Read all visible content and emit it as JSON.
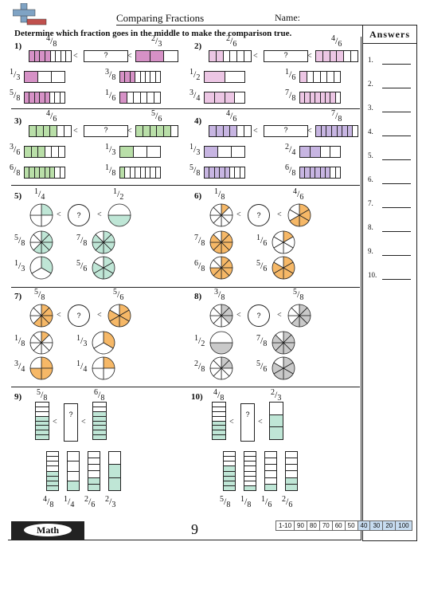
{
  "header": {
    "title": "Comparing Fractions",
    "name_label": "Name:"
  },
  "instructions": "Determine which fraction goes in the middle to make the comparison true.",
  "answers": {
    "title": "Answers",
    "labels": [
      "1.",
      "2.",
      "3.",
      "4.",
      "5.",
      "6.",
      "7.",
      "8.",
      "9.",
      "10."
    ]
  },
  "colors": {
    "pink": "#d691c6",
    "pink_light": "#ecc6e4",
    "green": "#b9dfa8",
    "lavender": "#c7b5e2",
    "teal": "#bfe6d6",
    "orange": "#f6b867",
    "gray": "#c9c9c9"
  },
  "symbols": {
    "lt": "<",
    "q": "?"
  },
  "problems": [
    {
      "label": "1)",
      "kind": "bar",
      "color": "pink",
      "left": {
        "n": "4",
        "d": "8",
        "filled": 4,
        "parts": 8
      },
      "right": {
        "n": "2",
        "d": "3",
        "filled": 2,
        "parts": 3
      },
      "options": [
        {
          "n": "1",
          "d": "3",
          "filled": 1,
          "parts": 3
        },
        {
          "n": "3",
          "d": "8",
          "filled": 3,
          "parts": 8
        },
        {
          "n": "5",
          "d": "8",
          "filled": 5,
          "parts": 8
        },
        {
          "n": "1",
          "d": "6",
          "filled": 1,
          "parts": 6
        }
      ]
    },
    {
      "label": "2)",
      "kind": "bar",
      "color": "pink_light",
      "left": {
        "n": "2",
        "d": "6",
        "filled": 2,
        "parts": 6
      },
      "right": {
        "n": "4",
        "d": "6",
        "filled": 4,
        "parts": 6
      },
      "options": [
        {
          "n": "1",
          "d": "2",
          "filled": 1,
          "parts": 2
        },
        {
          "n": "1",
          "d": "6",
          "filled": 1,
          "parts": 6
        },
        {
          "n": "3",
          "d": "4",
          "filled": 3,
          "parts": 4
        },
        {
          "n": "7",
          "d": "8",
          "filled": 7,
          "parts": 8
        }
      ]
    },
    {
      "label": "3)",
      "kind": "bar",
      "color": "green",
      "left": {
        "n": "4",
        "d": "6",
        "filled": 4,
        "parts": 6
      },
      "right": {
        "n": "5",
        "d": "6",
        "filled": 5,
        "parts": 6
      },
      "options": [
        {
          "n": "3",
          "d": "6",
          "filled": 3,
          "parts": 6
        },
        {
          "n": "1",
          "d": "3",
          "filled": 1,
          "parts": 3
        },
        {
          "n": "6",
          "d": "8",
          "filled": 6,
          "parts": 8
        },
        {
          "n": "1",
          "d": "8",
          "filled": 1,
          "parts": 8
        }
      ]
    },
    {
      "label": "4)",
      "kind": "bar",
      "color": "lavender",
      "left": {
        "n": "4",
        "d": "6",
        "filled": 4,
        "parts": 6
      },
      "right": {
        "n": "7",
        "d": "8",
        "filled": 7,
        "parts": 8
      },
      "options": [
        {
          "n": "1",
          "d": "3",
          "filled": 1,
          "parts": 3
        },
        {
          "n": "2",
          "d": "4",
          "filled": 2,
          "parts": 4
        },
        {
          "n": "5",
          "d": "8",
          "filled": 5,
          "parts": 8
        },
        {
          "n": "6",
          "d": "8",
          "filled": 6,
          "parts": 8
        }
      ]
    },
    {
      "label": "5)",
      "kind": "pie",
      "color": "teal",
      "left": {
        "n": "1",
        "d": "4",
        "filled": 1,
        "parts": 4
      },
      "right": {
        "n": "1",
        "d": "2",
        "filled": 1,
        "parts": 2
      },
      "options": [
        {
          "n": "5",
          "d": "8",
          "filled": 5,
          "parts": 8
        },
        {
          "n": "7",
          "d": "8",
          "filled": 7,
          "parts": 8
        },
        {
          "n": "1",
          "d": "3",
          "filled": 1,
          "parts": 3
        },
        {
          "n": "5",
          "d": "6",
          "filled": 5,
          "parts": 6
        }
      ]
    },
    {
      "label": "6)",
      "kind": "pie",
      "color": "orange",
      "left": {
        "n": "1",
        "d": "8",
        "filled": 1,
        "parts": 8
      },
      "right": {
        "n": "4",
        "d": "6",
        "filled": 4,
        "parts": 6
      },
      "options": [
        {
          "n": "7",
          "d": "8",
          "filled": 7,
          "parts": 8
        },
        {
          "n": "1",
          "d": "6",
          "filled": 1,
          "parts": 6
        },
        {
          "n": "6",
          "d": "8",
          "filled": 6,
          "parts": 8
        },
        {
          "n": "5",
          "d": "6",
          "filled": 5,
          "parts": 6
        }
      ]
    },
    {
      "label": "7)",
      "kind": "pie",
      "color": "orange",
      "left": {
        "n": "5",
        "d": "8",
        "filled": 5,
        "parts": 8
      },
      "right": {
        "n": "5",
        "d": "6",
        "filled": 5,
        "parts": 6
      },
      "options": [
        {
          "n": "1",
          "d": "8",
          "filled": 1,
          "parts": 8
        },
        {
          "n": "1",
          "d": "3",
          "filled": 1,
          "parts": 3
        },
        {
          "n": "3",
          "d": "4",
          "filled": 3,
          "parts": 4
        },
        {
          "n": "1",
          "d": "4",
          "filled": 1,
          "parts": 4
        }
      ]
    },
    {
      "label": "8)",
      "kind": "pie",
      "color": "gray",
      "left": {
        "n": "3",
        "d": "8",
        "filled": 3,
        "parts": 8
      },
      "right": {
        "n": "5",
        "d": "8",
        "filled": 5,
        "parts": 8
      },
      "options": [
        {
          "n": "1",
          "d": "2",
          "filled": 1,
          "parts": 2
        },
        {
          "n": "7",
          "d": "8",
          "filled": 7,
          "parts": 8
        },
        {
          "n": "2",
          "d": "8",
          "filled": 2,
          "parts": 8
        },
        {
          "n": "5",
          "d": "6",
          "filled": 5,
          "parts": 6
        }
      ]
    },
    {
      "label": "9)",
      "kind": "vbar",
      "color": "teal",
      "left": {
        "n": "5",
        "d": "8",
        "filled": 5,
        "parts": 8
      },
      "right": {
        "n": "6",
        "d": "8",
        "filled": 6,
        "parts": 8
      },
      "options": [
        {
          "n": "4",
          "d": "8",
          "filled": 4,
          "parts": 8
        },
        {
          "n": "1",
          "d": "4",
          "filled": 1,
          "parts": 4
        },
        {
          "n": "2",
          "d": "6",
          "filled": 2,
          "parts": 6
        },
        {
          "n": "2",
          "d": "3",
          "filled": 2,
          "parts": 3
        }
      ]
    },
    {
      "label": "10)",
      "kind": "vbar",
      "color": "teal",
      "left": {
        "n": "4",
        "d": "8",
        "filled": 4,
        "parts": 8
      },
      "right": {
        "n": "2",
        "d": "3",
        "filled": 2,
        "parts": 3
      },
      "options": [
        {
          "n": "5",
          "d": "8",
          "filled": 5,
          "parts": 8
        },
        {
          "n": "1",
          "d": "8",
          "filled": 1,
          "parts": 8
        },
        {
          "n": "1",
          "d": "6",
          "filled": 1,
          "parts": 6
        },
        {
          "n": "2",
          "d": "6",
          "filled": 2,
          "parts": 6
        }
      ]
    }
  ],
  "footer": {
    "brand": "Math",
    "page": "9",
    "scale": [
      "1-10",
      "90",
      "80",
      "70",
      "60",
      "50",
      "40",
      "30",
      "20",
      "100"
    ]
  }
}
